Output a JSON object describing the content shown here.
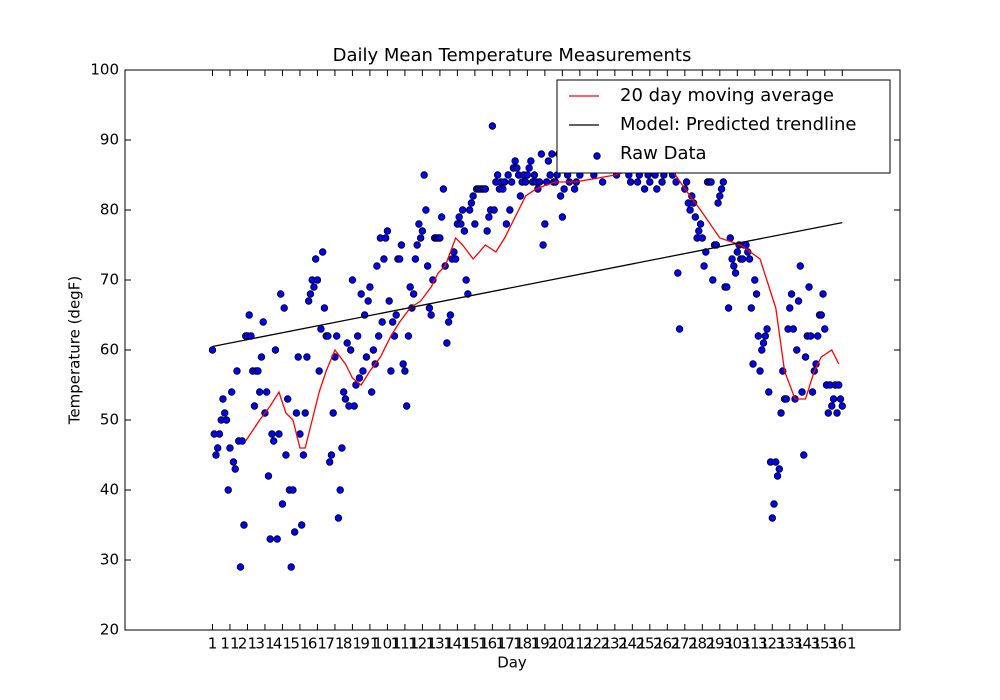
{
  "chart_data": {
    "type": "scatter",
    "title": "Daily Mean Temperature Measurements",
    "xlabel": "Day",
    "ylabel": "Temperature (degF)",
    "xlim": [
      -49,
      394
    ],
    "ylim": [
      20,
      100
    ],
    "xticks": [
      1,
      11,
      21,
      31,
      41,
      51,
      61,
      71,
      81,
      91,
      101,
      111,
      121,
      131,
      141,
      151,
      161,
      171,
      181,
      191,
      201,
      211,
      221,
      231,
      241,
      251,
      261,
      271,
      281,
      291,
      301,
      311,
      321,
      331,
      341,
      351,
      361
    ],
    "yticks": [
      20,
      30,
      40,
      50,
      60,
      70,
      80,
      90,
      100
    ],
    "legend_position": "upper right",
    "series": [
      {
        "name": "20 day moving average",
        "type": "line",
        "color": "#ff0000",
        "x": [
          20,
          28,
          34,
          39,
          43,
          47,
          51,
          54,
          58,
          62,
          66,
          71,
          77,
          81,
          86,
          91,
          97,
          103,
          108,
          114,
          120,
          126,
          130,
          134,
          140,
          144,
          150,
          157,
          163,
          168,
          174,
          180,
          186,
          191,
          197,
          208,
          220,
          231,
          245,
          260,
          274,
          280,
          291,
          303,
          314,
          323,
          328,
          334,
          340,
          345,
          349,
          355,
          359
        ],
        "values": [
          47,
          50,
          52,
          54,
          51,
          50,
          46,
          46,
          50,
          54,
          57,
          60,
          58,
          56,
          55,
          57,
          59,
          62,
          64,
          66,
          67,
          69,
          71,
          72,
          76,
          75,
          73,
          75,
          74,
          76,
          79,
          82,
          83,
          83.5,
          84,
          84,
          84.5,
          85,
          86,
          87,
          82,
          80,
          76,
          75,
          73,
          66,
          57,
          53,
          53,
          57,
          59,
          60,
          58
        ]
      },
      {
        "name": "Model: Predicted trendline",
        "type": "line",
        "color": "#000000",
        "x": [
          1,
          361
        ],
        "values": [
          60.5,
          78.2
        ]
      },
      {
        "name": "Raw Data",
        "type": "scatter",
        "color": "#0000ff",
        "x": [
          1,
          2,
          3,
          4,
          5,
          6,
          7,
          8,
          9,
          10,
          11,
          12,
          13,
          14,
          15,
          16,
          17,
          18,
          19,
          20,
          21,
          22,
          23,
          24,
          25,
          26,
          27,
          28,
          29,
          30,
          31,
          32,
          33,
          34,
          35,
          36,
          37,
          38,
          39,
          40,
          41,
          42,
          43,
          44,
          45,
          46,
          47,
          48,
          49,
          50,
          51,
          52,
          53,
          54,
          55,
          56,
          57,
          58,
          59,
          60,
          61,
          62,
          63,
          64,
          65,
          66,
          67,
          68,
          69,
          70,
          71,
          72,
          73,
          74,
          75,
          76,
          77,
          78,
          79,
          80,
          81,
          82,
          83,
          84,
          85,
          86,
          87,
          88,
          89,
          90,
          91,
          92,
          93,
          94,
          95,
          96,
          97,
          98,
          99,
          100,
          101,
          102,
          103,
          104,
          105,
          106,
          107,
          108,
          109,
          110,
          111,
          112,
          113,
          114,
          115,
          116,
          117,
          118,
          119,
          120,
          121,
          122,
          123,
          124,
          125,
          126,
          127,
          128,
          129,
          130,
          131,
          132,
          133,
          134,
          135,
          136,
          137,
          138,
          139,
          140,
          141,
          142,
          143,
          144,
          145,
          146,
          147,
          148,
          149,
          150,
          151,
          152,
          153,
          154,
          155,
          156,
          157,
          158,
          159,
          160,
          161,
          162,
          163,
          164,
          165,
          166,
          167,
          168,
          169,
          170,
          171,
          172,
          173,
          174,
          175,
          176,
          177,
          178,
          179,
          180,
          181,
          182,
          183,
          184,
          185,
          186,
          187,
          188,
          189,
          190,
          191,
          192,
          193,
          194,
          195,
          196,
          197,
          198,
          199,
          200,
          201,
          202,
          203,
          204,
          205,
          206,
          207,
          208,
          209,
          210,
          211,
          212,
          213,
          214,
          215,
          216,
          217,
          218,
          219,
          220,
          221,
          222,
          223,
          224,
          225,
          226,
          227,
          228,
          229,
          230,
          231,
          232,
          233,
          234,
          235,
          236,
          237,
          238,
          239,
          240,
          241,
          242,
          243,
          244,
          245,
          246,
          247,
          248,
          249,
          250,
          251,
          252,
          253,
          254,
          255,
          256,
          257,
          258,
          259,
          260,
          261,
          262,
          263,
          264,
          265,
          266,
          267,
          268,
          269,
          270,
          271,
          272,
          273,
          274,
          275,
          276,
          277,
          278,
          279,
          280,
          281,
          282,
          283,
          284,
          285,
          286,
          287,
          288,
          289,
          290,
          291,
          292,
          293,
          294,
          295,
          296,
          297,
          298,
          299,
          300,
          301,
          302,
          303,
          304,
          305,
          306,
          307,
          308,
          309,
          310,
          311,
          312,
          313,
          314,
          315,
          316,
          317,
          318,
          319,
          320,
          321,
          322,
          323,
          324,
          325,
          326,
          327,
          328,
          329,
          330,
          331,
          332,
          333,
          334,
          335,
          336,
          337,
          338,
          339,
          340,
          341,
          342,
          343,
          344,
          345,
          346,
          347,
          348,
          349,
          350,
          351,
          352,
          353,
          354,
          355,
          356,
          357,
          358,
          359,
          360,
          361
        ],
        "values": [
          60,
          48,
          45,
          46,
          48,
          50,
          53,
          51,
          50,
          40,
          46,
          54,
          44,
          43,
          57,
          47,
          29,
          47,
          35,
          62,
          62,
          65,
          62,
          57,
          52,
          57,
          57,
          54,
          59,
          64,
          51,
          54,
          42,
          33,
          48,
          47,
          60,
          33,
          48,
          68,
          38,
          66,
          45,
          53,
          40,
          29,
          40,
          34,
          51,
          59,
          48,
          35,
          45,
          51,
          59,
          67,
          68,
          70,
          69,
          73,
          70,
          57,
          63,
          74,
          66,
          62,
          62,
          44,
          45,
          51,
          59,
          62,
          36,
          40,
          46,
          54,
          53,
          61,
          52,
          60,
          70,
          52,
          55,
          62,
          56,
          68,
          57,
          65,
          59,
          67,
          69,
          54,
          60,
          58,
          72,
          62,
          76,
          64,
          73,
          76,
          77,
          67,
          57,
          64,
          62,
          65,
          73,
          73,
          75,
          58,
          57,
          52,
          62,
          69,
          66,
          68,
          73,
          75,
          78,
          76,
          77,
          85,
          80,
          72,
          66,
          65,
          70,
          76,
          76,
          76,
          76,
          79,
          83,
          72,
          61,
          64,
          65,
          73,
          74,
          73,
          78,
          79,
          78,
          80,
          77,
          70,
          68,
          80,
          81,
          82,
          78,
          83,
          83,
          83,
          83,
          83,
          83,
          77,
          79,
          80,
          92,
          80,
          84,
          85,
          83,
          84,
          83,
          84,
          78,
          85,
          80,
          84,
          86,
          87,
          86,
          85,
          82,
          84,
          85,
          84,
          85,
          86,
          87,
          84,
          85,
          84,
          83,
          84,
          88,
          75,
          78,
          84,
          87,
          85,
          88,
          84,
          84,
          85,
          88,
          82,
          79,
          83,
          86,
          85,
          84,
          88,
          87,
          83,
          84,
          89,
          85,
          90,
          86,
          88,
          87,
          89,
          91,
          87,
          85,
          90,
          86,
          88,
          89,
          84,
          90,
          88,
          87,
          86,
          89,
          90,
          88,
          85,
          91,
          89,
          87,
          90,
          86,
          88,
          85,
          84,
          87,
          86,
          89,
          84,
          85,
          88,
          86,
          83,
          87,
          85,
          84,
          86,
          88,
          85,
          83,
          86,
          87,
          84,
          85,
          86,
          87,
          89,
          86,
          85,
          88,
          84,
          71,
          63,
          87,
          86,
          83,
          84,
          81,
          80,
          82,
          81,
          79,
          76,
          77,
          78,
          76,
          72,
          74,
          84,
          84,
          84,
          70,
          75,
          75,
          81,
          82,
          83,
          84,
          69,
          69,
          66,
          76,
          73,
          72,
          71,
          74,
          75,
          73,
          73,
          75,
          75,
          74,
          73,
          66,
          58,
          70,
          68,
          62,
          57,
          60,
          61,
          62,
          63,
          54,
          44,
          36,
          38,
          44,
          42,
          43,
          51,
          57,
          53,
          53,
          63,
          66,
          68,
          63,
          53,
          60,
          67,
          72,
          54,
          45,
          59,
          62,
          69,
          62,
          54,
          57,
          58,
          62,
          65,
          65,
          68,
          63,
          55,
          51,
          55,
          52,
          53,
          55,
          51,
          55,
          53,
          52
        ]
      }
    ]
  }
}
